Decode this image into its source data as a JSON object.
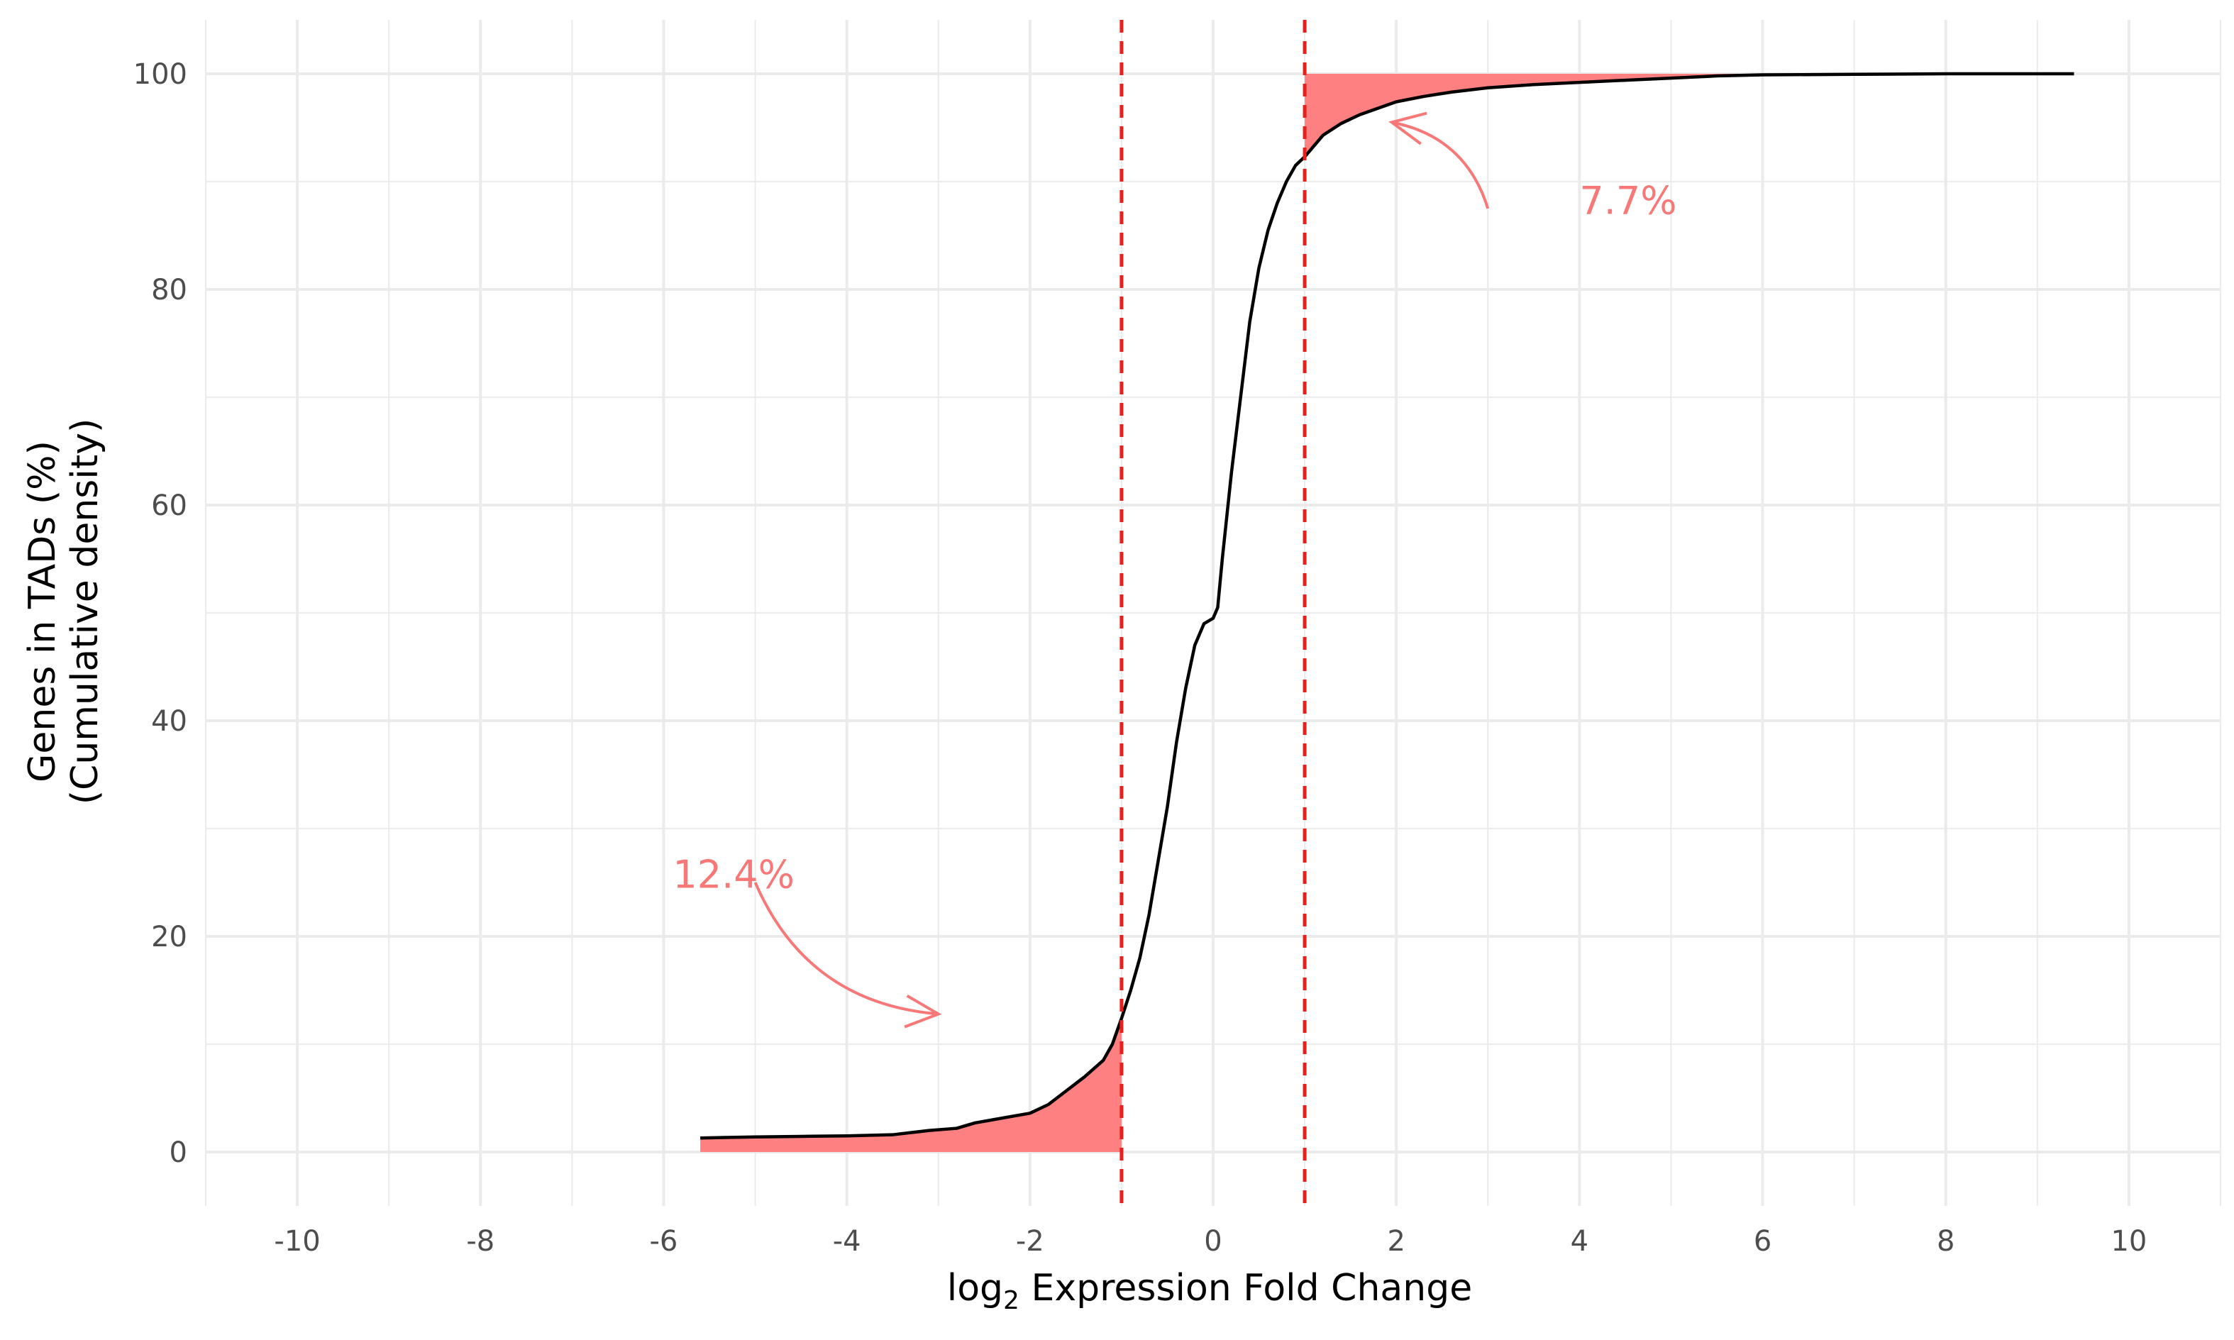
{
  "chart_data": {
    "type": "line",
    "xlabel": {
      "prefix": "log",
      "subscript": "2",
      "suffix": " Expression Fold Change"
    },
    "ylabel": [
      "Genes in TADs (%)",
      "(Cumulative density)"
    ],
    "xlim": [
      -11,
      11
    ],
    "ylim": [
      -5,
      105
    ],
    "x_ticks_major": [
      -10,
      -8,
      -6,
      -4,
      -2,
      0,
      2,
      4,
      6,
      8,
      10
    ],
    "x_tick_labels": [
      "-10",
      "-8",
      "-6",
      "-4",
      "-2",
      "0",
      "2",
      "4",
      "6",
      "8",
      "10"
    ],
    "y_ticks_major": [
      0,
      20,
      40,
      60,
      80,
      100
    ],
    "y_tick_labels": [
      "0",
      "20",
      "40",
      "60",
      "80",
      "100"
    ],
    "x_ticks_minor": [
      -11,
      -9,
      -7,
      -5,
      -3,
      -1,
      1,
      3,
      5,
      7,
      9,
      11
    ],
    "y_ticks_minor": [
      10,
      30,
      50,
      70,
      90
    ],
    "grid": true,
    "thresholds": [
      -1,
      1
    ],
    "series": [
      {
        "values": [
          [
            -5.6,
            1.3
          ],
          [
            -5.0,
            1.4
          ],
          [
            -4.5,
            1.45
          ],
          [
            -4.0,
            1.5
          ],
          [
            -3.5,
            1.6
          ],
          [
            -3.3,
            1.8
          ],
          [
            -3.1,
            2.0
          ],
          [
            -2.8,
            2.2
          ],
          [
            -2.6,
            2.7
          ],
          [
            -2.4,
            3.0
          ],
          [
            -2.2,
            3.3
          ],
          [
            -2.0,
            3.6
          ],
          [
            -1.8,
            4.4
          ],
          [
            -1.6,
            5.7
          ],
          [
            -1.4,
            7.0
          ],
          [
            -1.2,
            8.5
          ],
          [
            -1.1,
            10.0
          ],
          [
            -1.0,
            12.4
          ],
          [
            -0.9,
            15.0
          ],
          [
            -0.8,
            18.0
          ],
          [
            -0.7,
            22.0
          ],
          [
            -0.6,
            27.0
          ],
          [
            -0.5,
            32.0
          ],
          [
            -0.4,
            38.0
          ],
          [
            -0.3,
            43.0
          ],
          [
            -0.2,
            47.0
          ],
          [
            -0.1,
            49.0
          ],
          [
            0.0,
            49.5
          ],
          [
            0.05,
            50.5
          ],
          [
            0.1,
            55.0
          ],
          [
            0.2,
            63.0
          ],
          [
            0.3,
            70.0
          ],
          [
            0.4,
            77.0
          ],
          [
            0.5,
            82.0
          ],
          [
            0.6,
            85.5
          ],
          [
            0.7,
            88.0
          ],
          [
            0.8,
            90.0
          ],
          [
            0.9,
            91.5
          ],
          [
            1.0,
            92.3
          ],
          [
            1.2,
            94.3
          ],
          [
            1.4,
            95.4
          ],
          [
            1.6,
            96.2
          ],
          [
            1.8,
            96.8
          ],
          [
            2.0,
            97.4
          ],
          [
            2.3,
            97.9
          ],
          [
            2.6,
            98.3
          ],
          [
            3.0,
            98.7
          ],
          [
            3.5,
            99.0
          ],
          [
            4.0,
            99.2
          ],
          [
            4.5,
            99.4
          ],
          [
            5.0,
            99.6
          ],
          [
            5.5,
            99.8
          ],
          [
            6.0,
            99.9
          ],
          [
            7.0,
            99.95
          ],
          [
            8.0,
            100.0
          ],
          [
            9.4,
            100.0
          ]
        ],
        "color": "#000000"
      }
    ],
    "annotations": [
      {
        "text": "12.4%",
        "x": -5.9,
        "y": 24.5,
        "arrow_from": [
          -5.0,
          25.0
        ],
        "arrow_to": [
          -3.0,
          12.8
        ]
      },
      {
        "text": "7.7%",
        "x": 4.0,
        "y": 87.0,
        "arrow_from": [
          3.0,
          87.5
        ],
        "arrow_to": [
          1.95,
          95.5
        ]
      }
    ],
    "colors": {
      "fill": "#ff8080",
      "annotation": "#f87878",
      "threshold": "#e8201c",
      "grid": "#ebebeb",
      "curve": "#000000"
    }
  }
}
